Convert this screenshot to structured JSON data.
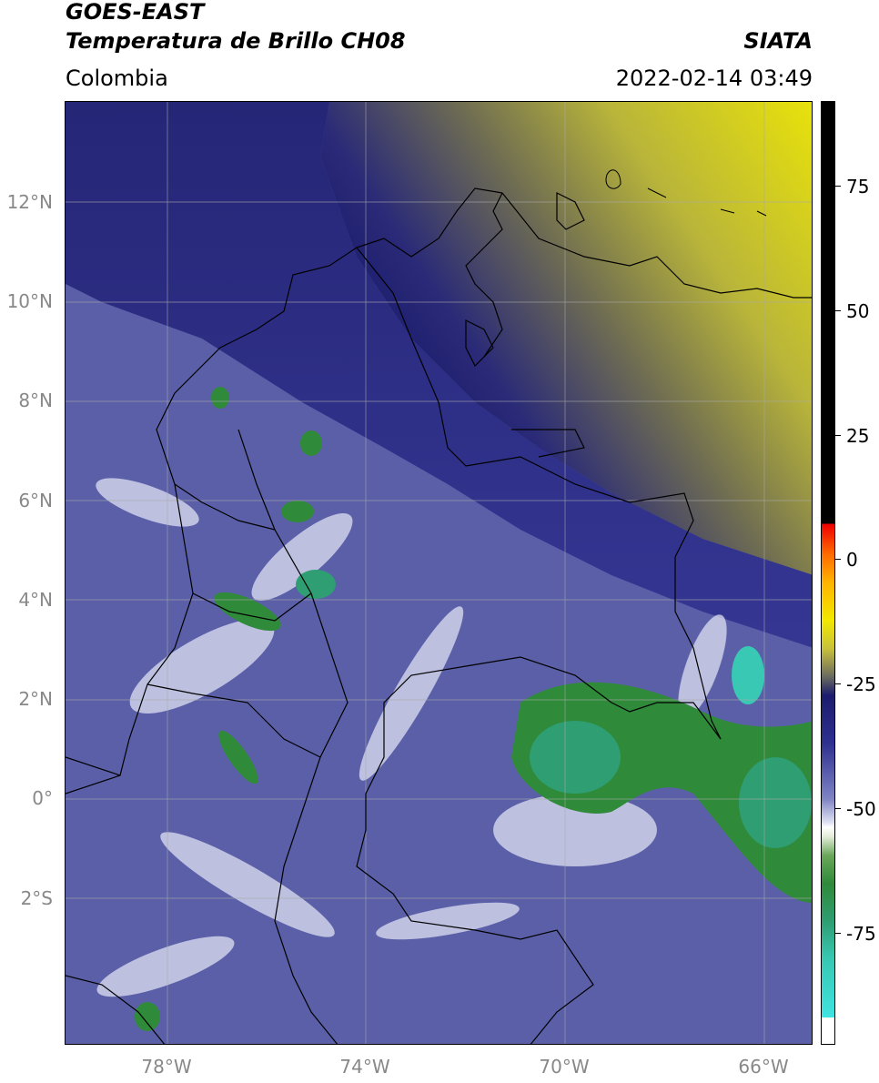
{
  "header": {
    "satellite": "GOES-EAST",
    "product": "Temperatura de Brillo CH08",
    "agency": "SIATA",
    "region": "Colombia",
    "datetime": "2022-02-14 03:49"
  },
  "map": {
    "lat_labels": [
      "12°N",
      "10°N",
      "8°N",
      "6°N",
      "4°N",
      "2°N",
      "0°",
      "2°S"
    ],
    "lon_labels": [
      "78°W",
      "74°W",
      "70°W",
      "66°W"
    ],
    "colors": {
      "warm_yellow": "#d8d42a",
      "olive": "#8c8a4a",
      "navy": "#1c1c6e",
      "blue": "#5a5fa8",
      "light": "#dfe1f2",
      "cold_green": "#2f8a3a",
      "teal": "#38c8b3",
      "border": "#000000"
    }
  },
  "colorbar": {
    "tick_labels": [
      "75",
      "50",
      "25",
      "0",
      "-25",
      "-50",
      "-75"
    ]
  }
}
